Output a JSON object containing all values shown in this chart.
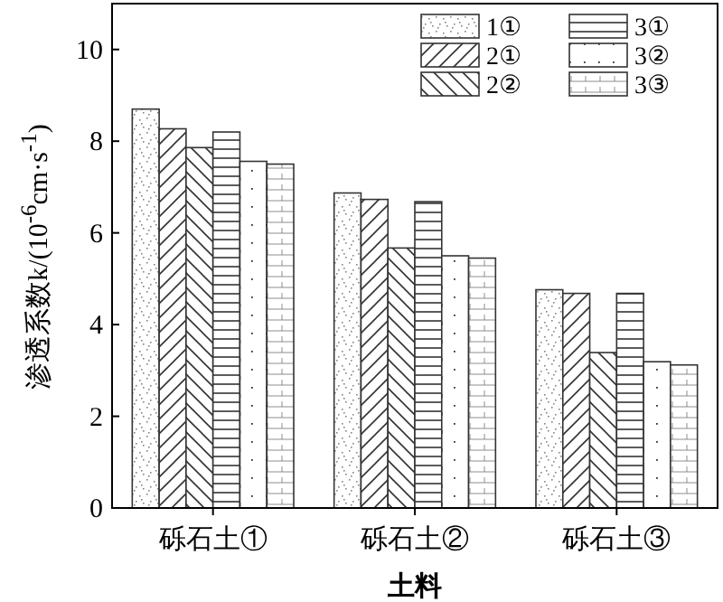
{
  "chart_data": {
    "type": "bar",
    "xlabel": "土料",
    "ylabel": "渗透系数k/(10$^{-6}$cm·s$^{-1}$)",
    "categories": [
      "砾石土①",
      "砾石土②",
      "砾石土③"
    ],
    "series": [
      {
        "name": "1①",
        "color": "#333333",
        "values": [
          8.7,
          6.87,
          4.76
        ]
      },
      {
        "name": "2①",
        "color": "#333333",
        "values": [
          8.27,
          6.73,
          4.68
        ]
      },
      {
        "name": "2②",
        "color": "#333333",
        "values": [
          7.86,
          5.67,
          3.39
        ]
      },
      {
        "name": "3①",
        "color": "#333333",
        "values": [
          8.2,
          6.68,
          4.68
        ]
      },
      {
        "name": "3②",
        "color": "#333333",
        "values": [
          7.56,
          5.5,
          3.19
        ]
      },
      {
        "name": "3③",
        "color": "#333333",
        "values": [
          7.5,
          5.45,
          3.12
        ]
      }
    ],
    "ylim": [
      0,
      11
    ],
    "yticks": [
      0,
      2,
      4,
      6,
      8,
      10
    ],
    "legend": "top right",
    "grid": false
  }
}
